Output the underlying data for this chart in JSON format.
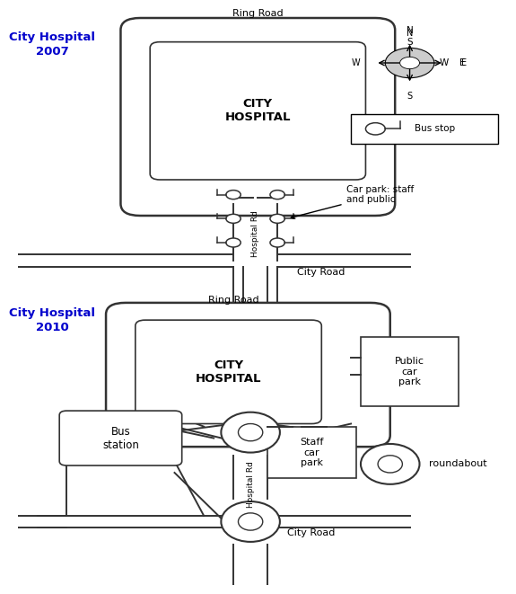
{
  "title_2007": "City Hospital\n2007",
  "title_2010": "City Hospital\n2010",
  "title_color": "#0000CC",
  "bg_color": "#FFFFFF",
  "road_color": "#333333",
  "fig_width": 5.46,
  "fig_height": 6.41
}
